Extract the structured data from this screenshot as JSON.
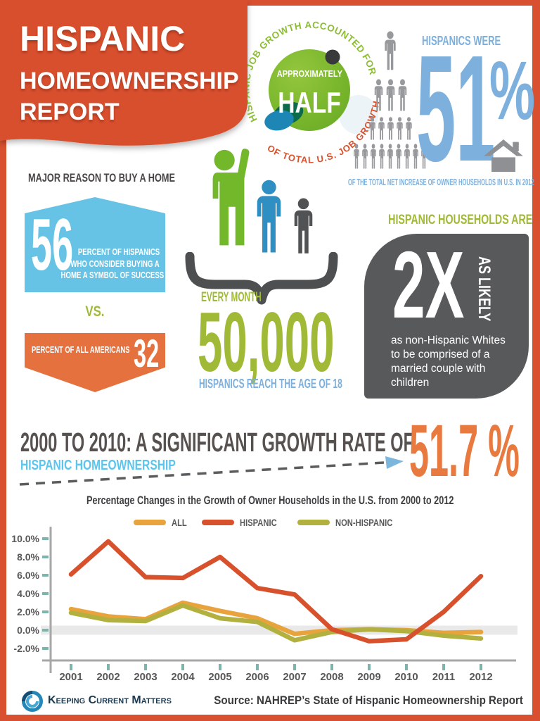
{
  "title_banner": {
    "line1": "HISPANIC",
    "line2": "HOMEOWNERSHIP",
    "line3": "REPORT"
  },
  "job_growth_badge": {
    "arc_top": "HISPANIC JOB GROWTH ACCOUNTED FOR",
    "label_small": "APPROXIMATELY",
    "label_big": "HALF",
    "arc_bottom": "OF TOTAL U.S. JOB GROWTH"
  },
  "hispanics_51": {
    "heading": "HISPANICS WERE",
    "value": "51",
    "unit": "%",
    "caption": "OF THE TOTAL NET INCREASE OF OWNER HOUSEHOLDS IN U.S. IN 2012",
    "pyramid_rows": [
      1,
      3,
      5,
      9
    ]
  },
  "major_reason": {
    "heading": "MAJOR REASON TO BUY A HOME",
    "hispanic_value": "56",
    "hispanic_label_lines": [
      "PERCENT OF HISPANICS",
      "WHO CONSIDER BUYING A",
      "HOME A SYMBOL OF SUCCESS"
    ],
    "vs_label": "VS.",
    "americans_label": "PERCENT OF ALL AMERICANS",
    "americans_value": "32"
  },
  "age_18": {
    "lead": "EVERY MONTH",
    "value": "50,000",
    "caption": "HISPANICS REACH THE AGE OF 18"
  },
  "households_2x": {
    "heading": "HISPANIC HOUSEHOLDS ARE",
    "value": "2X",
    "value_qualifier": "AS LIKELY",
    "body": "as non-Hispanic Whites to be comprised of a married couple with children"
  },
  "growth_headline": {
    "heading": "2000 TO 2010: A SIGNIFICANT GROWTH RATE OF",
    "sub": "HISPANIC HOMEOWNERSHIP",
    "value": "51.7 %"
  },
  "chart_data": {
    "type": "line",
    "title": "Percentage Changes in the Growth of Owner Households in the U.S. from 2000 to 2012",
    "categories": [
      "2001",
      "2002",
      "2003",
      "2004",
      "2005",
      "2006",
      "2007",
      "2008",
      "2009",
      "2010",
      "2011",
      "2012"
    ],
    "series": [
      {
        "name": "ALL",
        "color": "#e9a33c",
        "values": [
          2.3,
          1.5,
          1.2,
          3.0,
          2.1,
          1.3,
          -0.4,
          0.0,
          0.1,
          0.0,
          -0.3,
          -0.2
        ]
      },
      {
        "name": "HISPANIC",
        "color": "#d8512d",
        "values": [
          6.1,
          9.7,
          5.8,
          5.7,
          8.0,
          4.6,
          3.9,
          0.1,
          -1.2,
          -1.0,
          2.0,
          5.9
        ]
      },
      {
        "name": "NON-HISPANIC",
        "color": "#b2b13f",
        "values": [
          1.9,
          1.1,
          1.0,
          2.7,
          1.3,
          0.9,
          -1.1,
          -0.2,
          0.1,
          -0.1,
          -0.6,
          -0.9
        ]
      }
    ],
    "ylim": [
      -3,
      11
    ],
    "yticks": [
      10,
      8,
      6,
      4,
      2,
      0,
      -2
    ],
    "grid": "zero_band_only",
    "legend_position": "top"
  },
  "footer": {
    "brand": "Keeping Current Matters",
    "source": "Source: NAHREP’s State of Hispanic Homeownership Report"
  }
}
